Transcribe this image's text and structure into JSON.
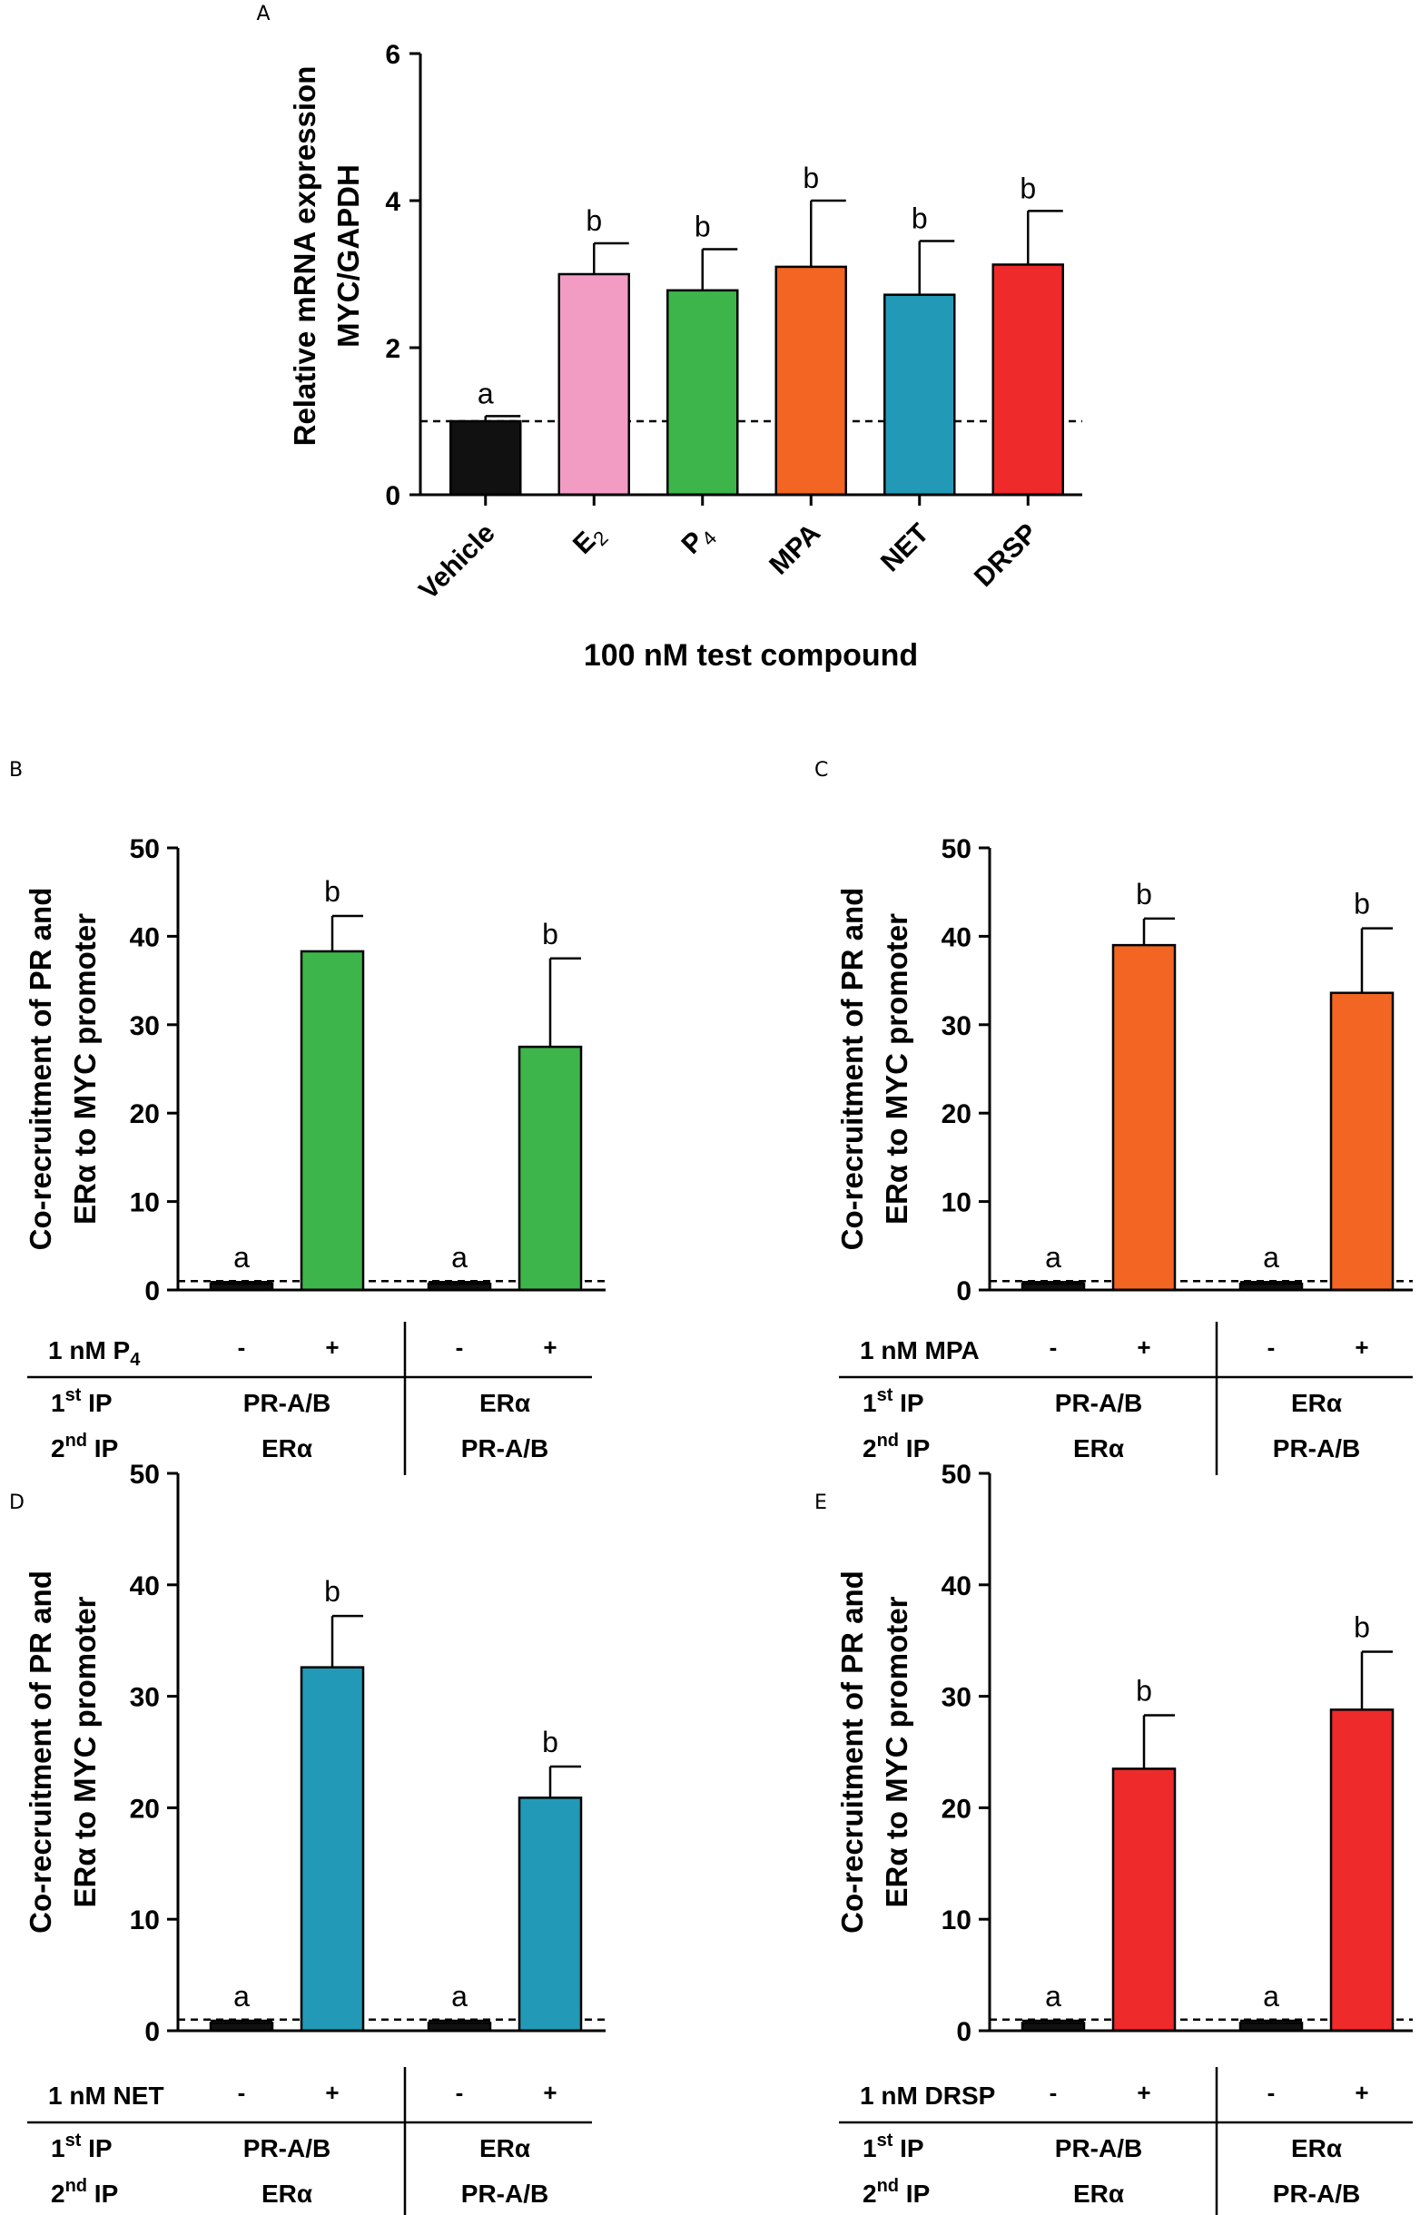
{
  "chart_data": [
    {
      "panel": "A",
      "type": "bar",
      "title": "",
      "ylabel_lines": [
        "Relative mRNA expression",
        "MYC/GAPDH"
      ],
      "xlabel": "100 nM test compound",
      "ylim": [
        0,
        6
      ],
      "yticks": [
        "0",
        "2",
        "4",
        "6"
      ],
      "reference_line": 1,
      "categories": [
        {
          "main": "Vehicle",
          "sub": ""
        },
        {
          "main": "E",
          "sub": "2"
        },
        {
          "main": "P",
          "sub": "4"
        },
        {
          "main": "MPA",
          "sub": ""
        },
        {
          "main": "NET",
          "sub": ""
        },
        {
          "main": "DRSP",
          "sub": ""
        }
      ],
      "values": [
        1.0,
        3.0,
        2.78,
        3.1,
        2.72,
        3.13
      ],
      "errors": [
        0.07,
        0.42,
        0.56,
        0.9,
        0.73,
        0.73
      ],
      "significance": [
        "a",
        "b",
        "b",
        "b",
        "b",
        "b"
      ],
      "colors": [
        "#111111",
        "#f29cc4",
        "#3db54a",
        "#f26522",
        "#2299b7",
        "#ee2a2a"
      ]
    },
    {
      "panel": "B",
      "type": "bar",
      "ylabel_lines": [
        "Co-recruitment of  PR and",
        "ERα to MYC promoter"
      ],
      "ylim": [
        0,
        50
      ],
      "yticks": [
        "0",
        "10",
        "20",
        "30",
        "40",
        "50"
      ],
      "reference_line": 1,
      "values": [
        0.7,
        38.3,
        0.7,
        27.5
      ],
      "errors": [
        0.2,
        4.0,
        0.2,
        10.0
      ],
      "significance": [
        "a",
        "b",
        "a",
        "b"
      ],
      "color": "#3db54a",
      "treatment_label": "1 nM P",
      "treatment_sub": "4",
      "treatment_signs": [
        "-",
        "+",
        "-",
        "+"
      ],
      "first_ip_label": "1",
      "first_ip_sup": "st",
      "second_ip_label": "2",
      "second_ip_sup": "nd",
      "ip_text": "IP",
      "first_ip": [
        "PR-A/B",
        "ERα"
      ],
      "second_ip": [
        "ERα",
        "PR-A/B"
      ]
    },
    {
      "panel": "C",
      "type": "bar",
      "ylabel_lines": [
        "Co-recruitment of  PR and",
        "ERα to MYC promoter"
      ],
      "ylim": [
        0,
        50
      ],
      "yticks": [
        "0",
        "10",
        "20",
        "30",
        "40",
        "50"
      ],
      "reference_line": 1,
      "values": [
        0.7,
        39.0,
        0.7,
        33.6
      ],
      "errors": [
        0.2,
        3.0,
        0.2,
        7.3
      ],
      "significance": [
        "a",
        "b",
        "a",
        "b"
      ],
      "color": "#f26522",
      "treatment_label": "1 nM MPA",
      "treatment_sub": "",
      "treatment_signs": [
        "-",
        "+",
        "-",
        "+"
      ],
      "first_ip_label": "1",
      "first_ip_sup": "st",
      "second_ip_label": "2",
      "second_ip_sup": "nd",
      "ip_text": "IP",
      "first_ip": [
        "PR-A/B",
        "ERα"
      ],
      "second_ip": [
        "ERα",
        "PR-A/B"
      ]
    },
    {
      "panel": "D",
      "type": "bar",
      "ylabel_lines": [
        "Co-recruitment of  PR and",
        "ERα to MYC promoter"
      ],
      "ylim": [
        0,
        50
      ],
      "yticks": [
        "0",
        "10",
        "20",
        "30",
        "40",
        "50"
      ],
      "reference_line": 1,
      "values": [
        0.7,
        32.6,
        0.7,
        20.9
      ],
      "errors": [
        0.2,
        4.6,
        0.2,
        2.8
      ],
      "significance": [
        "a",
        "b",
        "a",
        "b"
      ],
      "color": "#2299b7",
      "treatment_label": "1 nM NET",
      "treatment_sub": "",
      "treatment_signs": [
        "-",
        "+",
        "-",
        "+"
      ],
      "first_ip_label": "1",
      "first_ip_sup": "st",
      "second_ip_label": "2",
      "second_ip_sup": "nd",
      "ip_text": "IP",
      "first_ip": [
        "PR-A/B",
        "ERα"
      ],
      "second_ip": [
        "ERα",
        "PR-A/B"
      ]
    },
    {
      "panel": "E",
      "type": "bar",
      "ylabel_lines": [
        "Co-recruitment of  PR and",
        "ERα to MYC promoter"
      ],
      "ylim": [
        0,
        50
      ],
      "yticks": [
        "0",
        "10",
        "20",
        "30",
        "40",
        "50"
      ],
      "reference_line": 1,
      "values": [
        0.7,
        23.5,
        0.7,
        28.8
      ],
      "errors": [
        0.2,
        4.8,
        0.2,
        5.2
      ],
      "significance": [
        "a",
        "b",
        "a",
        "b"
      ],
      "color": "#ee2a2a",
      "treatment_label": "1 nM DRSP",
      "treatment_sub": "",
      "treatment_signs": [
        "-",
        "+",
        "-",
        "+"
      ],
      "first_ip_label": "1",
      "first_ip_sup": "st",
      "second_ip_label": "2",
      "second_ip_sup": "nd",
      "ip_text": "IP",
      "first_ip": [
        "PR-A/B",
        "ERα"
      ],
      "second_ip": [
        "ERα",
        "PR-A/B"
      ]
    }
  ]
}
